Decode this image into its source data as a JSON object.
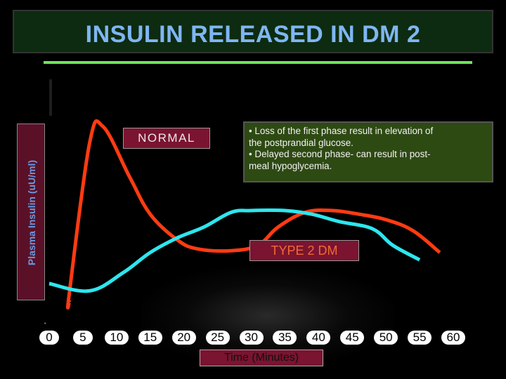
{
  "title": "INSULIN RELEASED IN DM 2",
  "labels": {
    "normal": "NORMAL",
    "type2": "TYPE 2 DM"
  },
  "note": {
    "lines": [
      "• Loss of the first phase result in elevation of",
      "the postprandial glucose.",
      "• Delayed  second phase- can result in post-",
      "meal hypoglycemia."
    ]
  },
  "colors": {
    "normal": "#ff3b12",
    "type2": "#2de6ee",
    "title": "#7fb6f2",
    "background": "#000000"
  },
  "chart_data": {
    "type": "line",
    "title": "INSULIN RELEASED IN DM 2",
    "xlabel": "Time (Minutes)",
    "ylabel": "Plasma Insulin (uU/ml)",
    "x_ticks": [
      "0",
      "5",
      "10",
      "15",
      "20",
      "25",
      "30",
      "35",
      "40",
      "45",
      "50",
      "55",
      "60"
    ],
    "xlim": [
      0,
      60
    ],
    "ylim": [
      0,
      100
    ],
    "y_ticks_shown": false,
    "grid": false,
    "series": [
      {
        "name": "NORMAL",
        "color": "#ff3b12",
        "points": [
          [
            3,
            0
          ],
          [
            3,
            5
          ],
          [
            6,
            87
          ],
          [
            8,
            96
          ],
          [
            12,
            68
          ],
          [
            15,
            48
          ],
          [
            19,
            34
          ],
          [
            22,
            29
          ],
          [
            27,
            28
          ],
          [
            31,
            31
          ],
          [
            34,
            41
          ],
          [
            38,
            49
          ],
          [
            42,
            50
          ],
          [
            46,
            48
          ],
          [
            50,
            45
          ],
          [
            54,
            39
          ],
          [
            58,
            27
          ]
        ]
      },
      {
        "name": "TYPE 2 DM",
        "color": "#2de6ee",
        "points": [
          [
            0,
            10
          ],
          [
            6,
            6
          ],
          [
            11,
            16
          ],
          [
            15,
            27
          ],
          [
            19,
            35
          ],
          [
            23,
            41
          ],
          [
            27,
            49
          ],
          [
            30,
            50
          ],
          [
            35,
            50
          ],
          [
            39,
            48
          ],
          [
            43,
            44
          ],
          [
            48,
            40
          ],
          [
            51,
            31
          ],
          [
            55,
            23
          ]
        ]
      }
    ]
  }
}
